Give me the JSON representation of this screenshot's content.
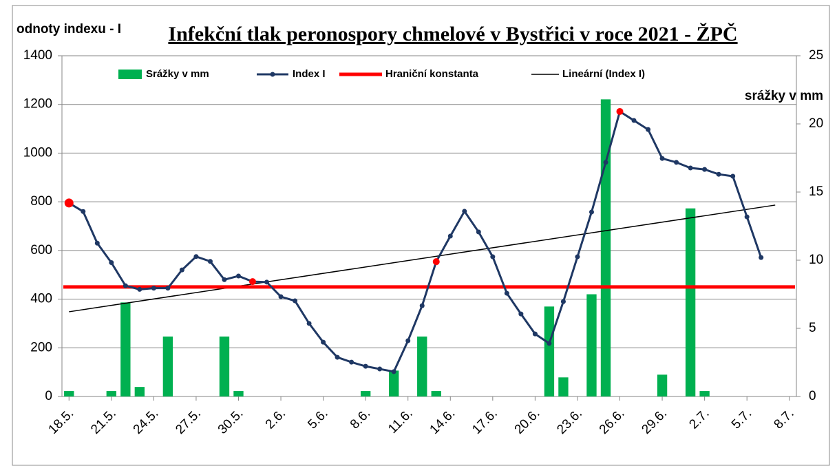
{
  "chart_data": {
    "type": "combo",
    "title": "Infekční tlak peronospory chmelové  v Bystřici v roce 2021 - ŽPČ",
    "y_label": "odnoty indexu - I",
    "y2_label": "srážky v mm",
    "categories": [
      "18.5.",
      null,
      null,
      "21.5.",
      null,
      null,
      "24.5.",
      null,
      null,
      "27.5.",
      null,
      null,
      "30.5.",
      null,
      null,
      "2.6.",
      null,
      null,
      "5.6.",
      null,
      null,
      "8.6.",
      null,
      null,
      "11.6.",
      null,
      null,
      "14.6.",
      null,
      null,
      "17.6.",
      null,
      null,
      "20.6.",
      null,
      null,
      "23.6.",
      null,
      null,
      "26.6.",
      null,
      null,
      "29.6.",
      null,
      null,
      "2.7.",
      null,
      null,
      "5.7.",
      null,
      null,
      "8.7."
    ],
    "series": [
      {
        "name": "Srážky v mm",
        "kind": "bar",
        "axis": "y2",
        "color": "#00b050",
        "values": [
          0.4,
          null,
          null,
          0.4,
          6.9,
          0.7,
          null,
          4.4,
          null,
          null,
          null,
          4.4,
          0.4,
          null,
          null,
          null,
          null,
          null,
          null,
          null,
          null,
          0.4,
          null,
          1.9,
          null,
          4.4,
          0.4,
          null,
          null,
          null,
          null,
          null,
          null,
          null,
          6.6,
          1.4,
          null,
          7.5,
          21.8,
          null,
          null,
          null,
          1.6,
          null,
          13.8,
          0.4,
          null,
          null,
          null,
          null,
          null,
          null
        ]
      },
      {
        "name": "Index I",
        "kind": "line",
        "color": "#1f3864",
        "values": [
          795,
          760,
          630,
          550,
          455,
          440,
          445,
          445,
          520,
          575,
          555,
          480,
          495,
          472,
          470,
          410,
          393,
          300,
          223,
          161,
          141,
          124,
          113,
          102,
          229,
          373,
          554,
          659,
          761,
          676,
          574,
          424,
          339,
          257,
          218,
          390,
          574,
          758,
          962,
          1171,
          1134,
          1097,
          978,
          962,
          939,
          933,
          913,
          905,
          738,
          571,
          null,
          null
        ],
        "highlight_points": [
          0,
          13,
          26,
          39
        ],
        "highlight_color": "#ff0000"
      },
      {
        "name": "Hraniční konstanta",
        "kind": "constant",
        "color": "#ff0000",
        "value": 450
      },
      {
        "name": "Lineární (Index I)",
        "kind": "trendline",
        "of": 1,
        "color": "#000000"
      }
    ],
    "ylim": [
      0,
      1400
    ],
    "yticks": [
      0,
      200,
      400,
      600,
      800,
      1000,
      1200,
      1400
    ],
    "y2lim": [
      0,
      25
    ],
    "y2ticks": [
      0,
      5,
      10,
      15,
      20,
      25
    ],
    "grid": true
  }
}
